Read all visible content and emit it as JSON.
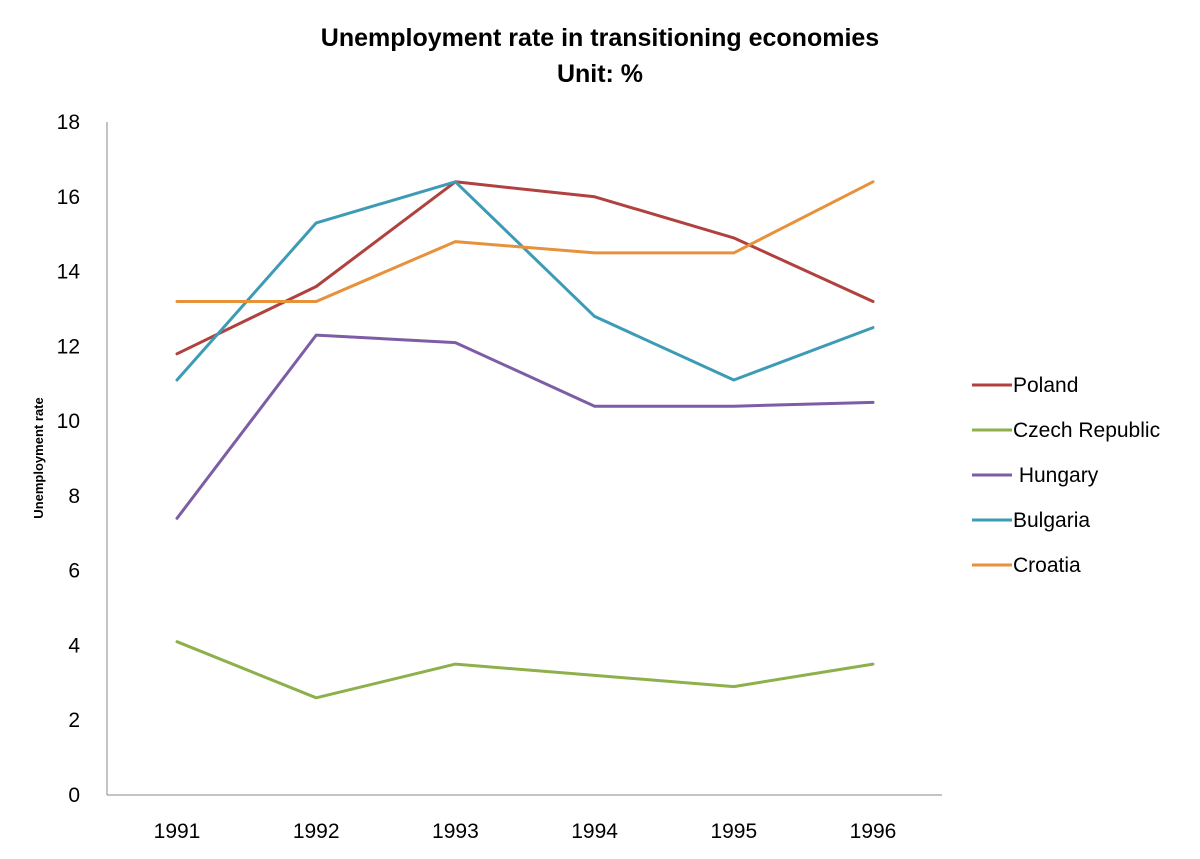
{
  "chart_data": {
    "type": "line",
    "title": "Unemployment rate in transitioning economies",
    "subtitle": "Unit: %",
    "xlabel": "",
    "ylabel": "Unemployment rate",
    "ylim": [
      0,
      18
    ],
    "yticks": [
      "0",
      "2",
      "4",
      "6",
      "8",
      "10",
      "12",
      "14",
      "16",
      "18"
    ],
    "categories": [
      "1991",
      "1992",
      "1993",
      "1994",
      "1995",
      "1996"
    ],
    "grid": false,
    "legend_position": "right",
    "series": [
      {
        "name": "Poland",
        "color": "#B0413E",
        "values": [
          11.8,
          13.6,
          16.4,
          16.0,
          14.9,
          13.2
        ]
      },
      {
        "name": "Czech Republic",
        "color": "#8DB04B",
        "values": [
          4.1,
          2.6,
          3.5,
          3.2,
          2.9,
          3.5
        ]
      },
      {
        "name": " Hungary",
        "color": "#7D5DA5",
        "values": [
          7.4,
          12.3,
          12.1,
          10.4,
          10.4,
          10.5
        ]
      },
      {
        "name": "Bulgaria",
        "color": "#3E9BB5",
        "values": [
          11.1,
          15.3,
          16.4,
          12.8,
          11.1,
          12.5
        ]
      },
      {
        "name": "Croatia",
        "color": "#E8913B",
        "values": [
          13.2,
          13.2,
          14.8,
          14.5,
          14.5,
          16.4
        ]
      }
    ]
  }
}
